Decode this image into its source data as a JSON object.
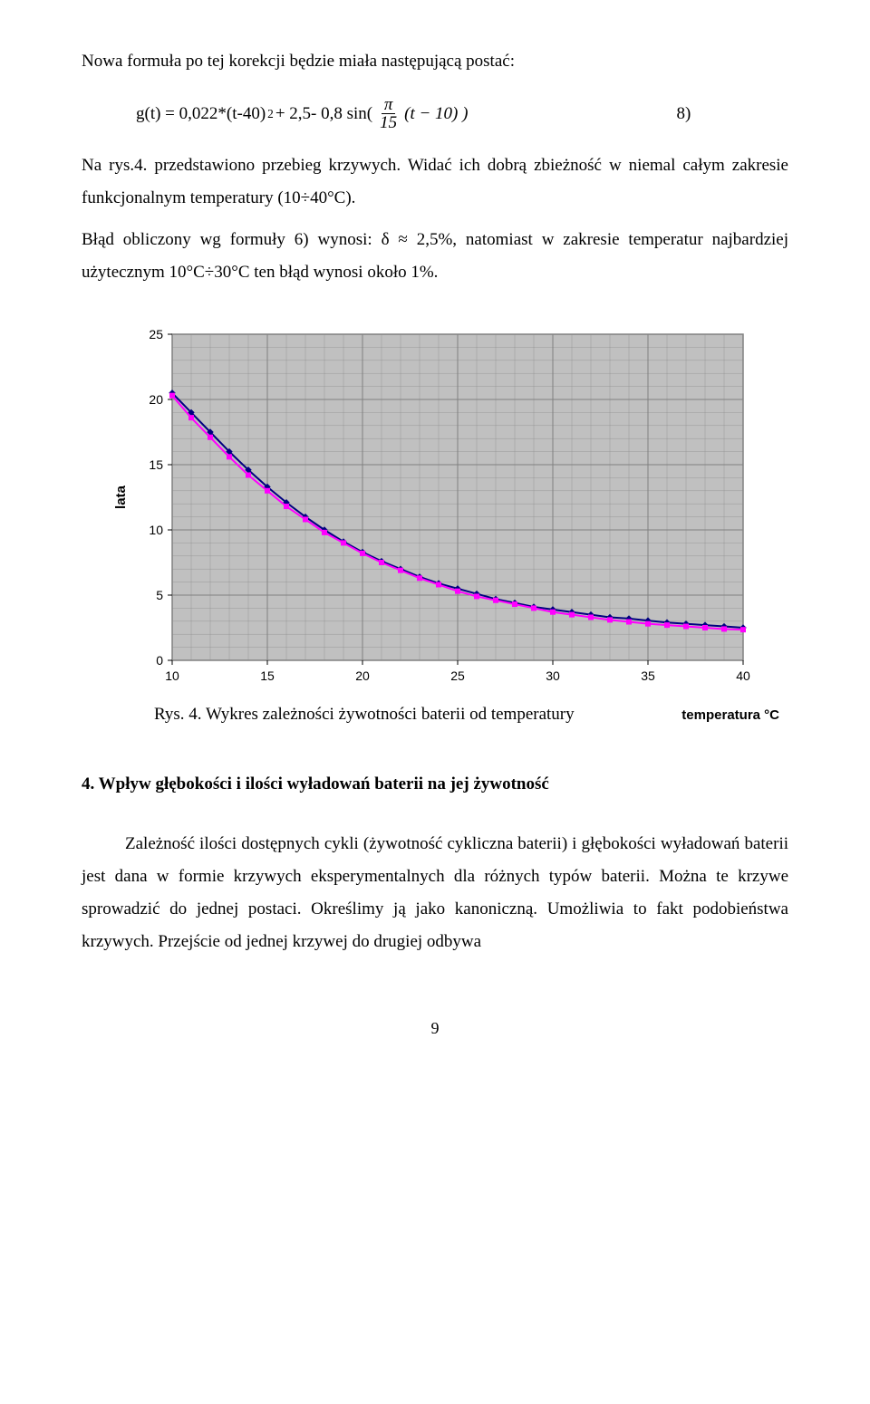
{
  "para1": "Nowa formuła po tej korekcji będzie miała następującą postać:",
  "formula": {
    "lhs": "g(t) = 0,022*(t-40)",
    "exp": "2",
    "mid": " + 2,5- 0,8 sin(",
    "frac_num": "π",
    "frac_den": "15",
    "rhs": "(t − 10) )",
    "num_label": "8)"
  },
  "para2a": "Na rys.4. przedstawiono przebieg krzywych. Widać ich dobrą zbieżność w niemal całym zakresie funkcjonalnym temperatury (10÷40°C).",
  "para2b": "Błąd obliczony wg formuły 6) wynosi: δ ≈ 2,5%, natomiast w zakresie temperatur najbardziej użytecznym 10°C÷30°C ten błąd wynosi około 1%.",
  "chart": {
    "type": "line",
    "ylabel": "lata",
    "xlabel": "temperatura °C",
    "y_ticks": [
      "0",
      "5",
      "10",
      "15",
      "20",
      "25"
    ],
    "y_vals": [
      0,
      5,
      10,
      15,
      20,
      25
    ],
    "x_ticks": [
      "10",
      "15",
      "20",
      "25",
      "30",
      "35",
      "40"
    ],
    "x_vals": [
      10,
      15,
      20,
      25,
      30,
      35,
      40
    ],
    "ylim": [
      0,
      25
    ],
    "xlim": [
      10,
      40
    ],
    "grid_color": "#808080",
    "plot_bg": "#c0c0c0",
    "border_color": "#808080",
    "series": [
      {
        "name": "series-navy",
        "color": "#000080",
        "marker": "diamond",
        "line_width": 2,
        "marker_size": 6,
        "points": [
          [
            10,
            20.5
          ],
          [
            11,
            19.0
          ],
          [
            12,
            17.5
          ],
          [
            13,
            16.0
          ],
          [
            14,
            14.6
          ],
          [
            15,
            13.3
          ],
          [
            16,
            12.1
          ],
          [
            17,
            11.0
          ],
          [
            18,
            10.0
          ],
          [
            19,
            9.1
          ],
          [
            20,
            8.3
          ],
          [
            21,
            7.6
          ],
          [
            22,
            7.0
          ],
          [
            23,
            6.4
          ],
          [
            24,
            5.9
          ],
          [
            25,
            5.5
          ],
          [
            26,
            5.1
          ],
          [
            27,
            4.7
          ],
          [
            28,
            4.4
          ],
          [
            29,
            4.1
          ],
          [
            30,
            3.9
          ],
          [
            31,
            3.7
          ],
          [
            32,
            3.5
          ],
          [
            33,
            3.3
          ],
          [
            34,
            3.2
          ],
          [
            35,
            3.05
          ],
          [
            36,
            2.9
          ],
          [
            37,
            2.8
          ],
          [
            38,
            2.7
          ],
          [
            39,
            2.6
          ],
          [
            40,
            2.5
          ]
        ]
      },
      {
        "name": "series-magenta",
        "color": "#ff00ff",
        "marker": "square",
        "line_width": 2,
        "marker_size": 5,
        "points": [
          [
            10,
            20.3
          ],
          [
            11,
            18.6
          ],
          [
            12,
            17.1
          ],
          [
            13,
            15.6
          ],
          [
            14,
            14.2
          ],
          [
            15,
            13.0
          ],
          [
            16,
            11.8
          ],
          [
            17,
            10.8
          ],
          [
            18,
            9.8
          ],
          [
            19,
            9.0
          ],
          [
            20,
            8.2
          ],
          [
            21,
            7.5
          ],
          [
            22,
            6.9
          ],
          [
            23,
            6.3
          ],
          [
            24,
            5.8
          ],
          [
            25,
            5.3
          ],
          [
            26,
            4.9
          ],
          [
            27,
            4.6
          ],
          [
            28,
            4.3
          ],
          [
            29,
            4.0
          ],
          [
            30,
            3.7
          ],
          [
            31,
            3.5
          ],
          [
            32,
            3.3
          ],
          [
            33,
            3.1
          ],
          [
            34,
            2.95
          ],
          [
            35,
            2.8
          ],
          [
            36,
            2.7
          ],
          [
            37,
            2.6
          ],
          [
            38,
            2.5
          ],
          [
            39,
            2.4
          ],
          [
            40,
            2.35
          ]
        ]
      }
    ]
  },
  "caption": "Rys. 4. Wykres zależności żywotności baterii od temperatury",
  "section_title": "4. Wpływ głębokości i ilości wyładowań baterii na jej żywotność",
  "para3": "Zależność ilości dostępnych cykli (żywotność cykliczna baterii) i głębokości wyładowań baterii jest dana w formie krzywych eksperymentalnych dla różnych typów baterii. Można te krzywe sprowadzić do jednej postaci. Określimy ją jako kanoniczną. Umożliwia to fakt podobieństwa krzywych. Przejście od jednej krzywej do drugiej odbywa",
  "page_number": "9"
}
